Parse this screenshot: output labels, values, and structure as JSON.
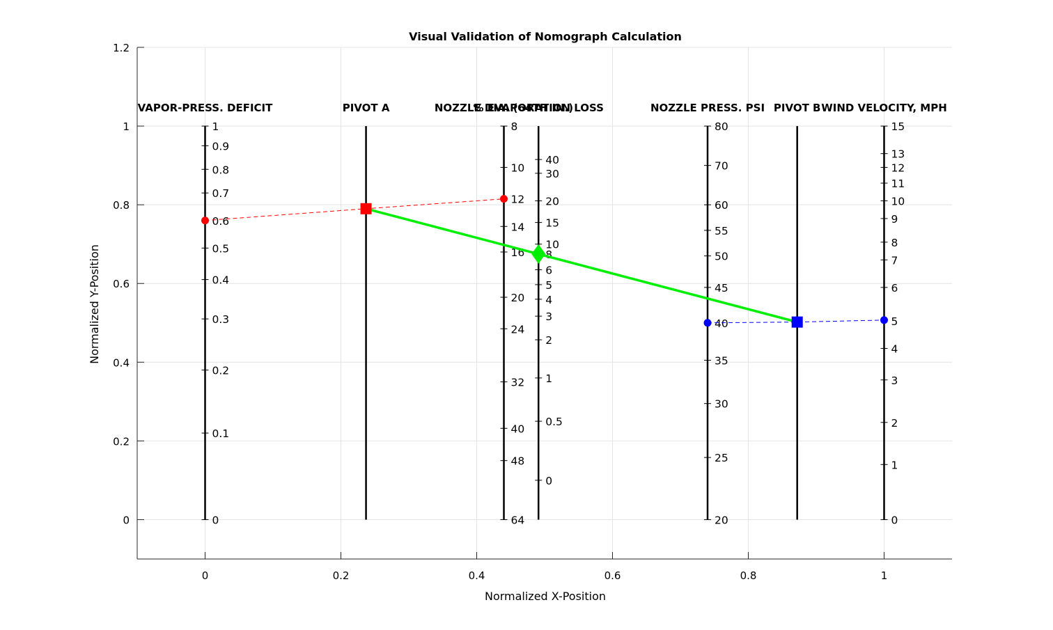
{
  "chart_data": {
    "type": "scatter",
    "title": "Visual Validation of Nomograph Calculation",
    "xlabel": "Normalized X-Position",
    "ylabel": "Normalized Y-Position",
    "xlim": [
      -0.1,
      1.1
    ],
    "ylim": [
      -0.1,
      1.2
    ],
    "grid": true,
    "x_ticks": [
      0,
      0.2,
      0.4,
      0.6,
      0.8,
      1
    ],
    "x_tick_labels": [
      "0",
      "0.2",
      "0.4",
      "0.6",
      "0.8",
      "1"
    ],
    "y_ticks": [
      0,
      0.2,
      0.4,
      0.6,
      0.8,
      1,
      1.2
    ],
    "y_tick_labels": [
      "0",
      "0.2",
      "0.4",
      "0.6",
      "0.8",
      "1",
      "1.2"
    ],
    "scales": [
      {
        "title": "VAPOR-PRESS. DEFICIT",
        "x": 0,
        "ticks": [
          {
            "label": "1",
            "y": 1.0
          },
          {
            "label": "0.9",
            "y": 0.95
          },
          {
            "label": "0.8",
            "y": 0.89
          },
          {
            "label": "0.7",
            "y": 0.83
          },
          {
            "label": "0.6",
            "y": 0.76
          },
          {
            "label": "0.5",
            "y": 0.69
          },
          {
            "label": "0.4",
            "y": 0.61
          },
          {
            "label": "0.3",
            "y": 0.51
          },
          {
            "label": "0.2",
            "y": 0.38
          },
          {
            "label": "0.1",
            "y": 0.22
          },
          {
            "label": "0",
            "y": 0.0
          }
        ]
      },
      {
        "title": "PIVOT A",
        "x": 0.237,
        "ticks": []
      },
      {
        "title": "NOZZLE DIA. (64TH IN.)",
        "x": 0.44,
        "ticks": [
          {
            "label": "8",
            "y": 1.0
          },
          {
            "label": "10",
            "y": 0.895
          },
          {
            "label": "12",
            "y": 0.815
          },
          {
            "label": "14",
            "y": 0.745
          },
          {
            "label": "16",
            "y": 0.68
          },
          {
            "label": "20",
            "y": 0.565
          },
          {
            "label": "24",
            "y": 0.485
          },
          {
            "label": "32",
            "y": 0.35
          },
          {
            "label": "40",
            "y": 0.232
          },
          {
            "label": "48",
            "y": 0.15
          },
          {
            "label": "64",
            "y": 0.0
          }
        ]
      },
      {
        "title": "% EVAPORATION LOSS",
        "x": 0.491,
        "ticks": [
          {
            "label": "40",
            "y": 0.915
          },
          {
            "label": "30",
            "y": 0.88
          },
          {
            "label": "20",
            "y": 0.81
          },
          {
            "label": "15",
            "y": 0.755
          },
          {
            "label": "10",
            "y": 0.7
          },
          {
            "label": "8",
            "y": 0.675
          },
          {
            "label": "6",
            "y": 0.635
          },
          {
            "label": "5",
            "y": 0.597
          },
          {
            "label": "4",
            "y": 0.56
          },
          {
            "label": "3",
            "y": 0.517
          },
          {
            "label": "2",
            "y": 0.457
          },
          {
            "label": "1",
            "y": 0.36
          },
          {
            "label": "0.5",
            "y": 0.25
          },
          {
            "label": "0",
            "y": 0.1
          }
        ]
      },
      {
        "title": "NOZZLE PRESS. PSI",
        "x": 0.74,
        "ticks": [
          {
            "label": "80",
            "y": 1.0
          },
          {
            "label": "70",
            "y": 0.9
          },
          {
            "label": "60",
            "y": 0.8
          },
          {
            "label": "55",
            "y": 0.735
          },
          {
            "label": "50",
            "y": 0.67
          },
          {
            "label": "45",
            "y": 0.59
          },
          {
            "label": "40",
            "y": 0.5
          },
          {
            "label": "35",
            "y": 0.405
          },
          {
            "label": "30",
            "y": 0.295
          },
          {
            "label": "25",
            "y": 0.158
          },
          {
            "label": "20",
            "y": 0.0
          }
        ]
      },
      {
        "title": "PIVOT B",
        "x": 0.872,
        "ticks": []
      },
      {
        "title": "WIND VELOCITY, MPH",
        "x": 1.0,
        "ticks": [
          {
            "label": "15",
            "y": 1.0
          },
          {
            "label": "13",
            "y": 0.93
          },
          {
            "label": "12",
            "y": 0.895
          },
          {
            "label": "11",
            "y": 0.855
          },
          {
            "label": "10",
            "y": 0.81
          },
          {
            "label": "9",
            "y": 0.765
          },
          {
            "label": "8",
            "y": 0.705
          },
          {
            "label": "7",
            "y": 0.66
          },
          {
            "label": "6",
            "y": 0.59
          },
          {
            "label": "5",
            "y": 0.505
          },
          {
            "label": "4",
            "y": 0.435
          },
          {
            "label": "3",
            "y": 0.355
          },
          {
            "label": "2",
            "y": 0.247
          },
          {
            "label": "1",
            "y": 0.14
          },
          {
            "label": "0",
            "y": 0.0
          }
        ]
      }
    ],
    "points": [
      {
        "name": "vpd-point",
        "x": 0,
        "y": 0.76,
        "marker": "circle",
        "color": "#ff0000"
      },
      {
        "name": "pivot-a-point",
        "x": 0.237,
        "y": 0.79,
        "marker": "square",
        "color": "#ff0000"
      },
      {
        "name": "nozzle-dia-point",
        "x": 0.44,
        "y": 0.815,
        "marker": "circle",
        "color": "#ff0000"
      },
      {
        "name": "evap-loss-point",
        "x": 0.491,
        "y": 0.675,
        "marker": "diamond",
        "color": "#00ee00"
      },
      {
        "name": "pressure-point",
        "x": 0.74,
        "y": 0.5,
        "marker": "circle",
        "color": "#0000ff"
      },
      {
        "name": "pivot-b-point",
        "x": 0.872,
        "y": 0.502,
        "marker": "square",
        "color": "#0000ff"
      },
      {
        "name": "wind-point",
        "x": 1.0,
        "y": 0.507,
        "marker": "circle",
        "color": "#0000ff"
      }
    ],
    "lines": [
      {
        "name": "red-dashed-line",
        "color": "#ff0000",
        "style": "dashed",
        "points": [
          [
            0,
            0.76
          ],
          [
            0.237,
            0.79
          ],
          [
            0.44,
            0.815
          ]
        ]
      },
      {
        "name": "green-solid-line",
        "color": "#00ee00",
        "style": "solid",
        "points": [
          [
            0.237,
            0.79
          ],
          [
            0.872,
            0.502
          ]
        ]
      },
      {
        "name": "blue-dashed-line",
        "color": "#0000ff",
        "style": "dashed",
        "points": [
          [
            0.74,
            0.5
          ],
          [
            0.872,
            0.502
          ],
          [
            1.0,
            0.507
          ]
        ]
      }
    ]
  }
}
